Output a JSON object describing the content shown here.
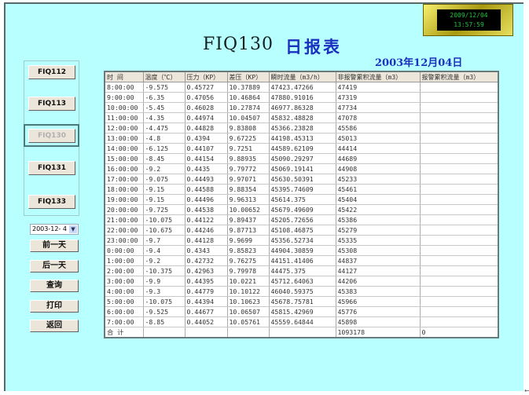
{
  "clock": {
    "date": "2009/12/04",
    "time": "13:57:59"
  },
  "header": {
    "title": "FIQ130",
    "subtitle": "日报表",
    "report_date": "2003年12月04日"
  },
  "nav": {
    "meters": [
      {
        "label": "FIQ112",
        "disabled": false
      },
      {
        "label": "FIQ113",
        "disabled": false
      },
      {
        "label": "FIQ130",
        "disabled": true
      },
      {
        "label": "FIQ131",
        "disabled": false
      },
      {
        "label": "FIQ133",
        "disabled": false
      }
    ],
    "date_select": "2003-12- 4",
    "actions": [
      {
        "label": "前一天"
      },
      {
        "label": "后一天"
      },
      {
        "label": "查询"
      },
      {
        "label": "打印"
      },
      {
        "label": "返回"
      }
    ]
  },
  "table": {
    "columns": [
      "时 间",
      "温度（℃）",
      "压力（KP）",
      "差压（KP）",
      "瞬时流量（m3/h）",
      "非报警累积流量（m3）",
      "报警累积流量（m3）"
    ],
    "rows": [
      [
        "8:00:00",
        "-9.575",
        "0.45727",
        "10.37889",
        "47423.47266",
        "47419",
        ""
      ],
      [
        "9:00:00",
        "-6.35",
        "0.47056",
        "10.46864",
        "47880.91016",
        "47319",
        ""
      ],
      [
        "10:00:00",
        "-5.45",
        "0.46028",
        "10.27874",
        "46977.86328",
        "47734",
        ""
      ],
      [
        "11:00:00",
        "-4.35",
        "0.44974",
        "10.04507",
        "45832.48828",
        "47078",
        ""
      ],
      [
        "12:00:00",
        "-4.475",
        "0.44828",
        "9.83808",
        "45366.23828",
        "45586",
        ""
      ],
      [
        "13:00:00",
        "-4.8",
        "0.4394",
        "9.67225",
        "44198.45313",
        "45013",
        ""
      ],
      [
        "14:00:00",
        "-6.125",
        "0.44107",
        "9.7251",
        "44589.62109",
        "44414",
        ""
      ],
      [
        "15:00:00",
        "-8.45",
        "0.44154",
        "9.88935",
        "45090.29297",
        "44689",
        ""
      ],
      [
        "16:00:00",
        "-9.2",
        "0.4435",
        "9.79772",
        "45069.19141",
        "44908",
        ""
      ],
      [
        "17:00:00",
        "-9.075",
        "0.44493",
        "9.97071",
        "45630.50391",
        "45233",
        ""
      ],
      [
        "18:00:00",
        "-9.15",
        "0.44588",
        "9.88354",
        "45395.74609",
        "45461",
        ""
      ],
      [
        "19:00:00",
        "-9.15",
        "0.44496",
        "9.96313",
        "45614.375",
        "45404",
        ""
      ],
      [
        "20:00:00",
        "-9.725",
        "0.44538",
        "10.00652",
        "45679.49609",
        "45422",
        ""
      ],
      [
        "21:00:00",
        "-10.075",
        "0.44122",
        "9.89437",
        "45205.72656",
        "45386",
        ""
      ],
      [
        "22:00:00",
        "-10.675",
        "0.44246",
        "9.87713",
        "45108.46875",
        "45279",
        ""
      ],
      [
        "23:00:00",
        "-9.7",
        "0.44128",
        "9.9699",
        "45356.52734",
        "45335",
        ""
      ],
      [
        "0:00:00",
        "-9.4",
        "0.4343",
        "9.85823",
        "44904.30859",
        "45308",
        ""
      ],
      [
        "1:00:00",
        "-9.2",
        "0.42732",
        "9.76275",
        "44151.41406",
        "44837",
        ""
      ],
      [
        "2:00:00",
        "-10.375",
        "0.42963",
        "9.79978",
        "44475.375",
        "44127",
        ""
      ],
      [
        "3:00:00",
        "-9.9",
        "0.44395",
        "10.0221",
        "45712.64063",
        "44206",
        ""
      ],
      [
        "4:00:00",
        "-9.3",
        "0.44779",
        "10.10122",
        "46040.59375",
        "45383",
        ""
      ],
      [
        "5:00:00",
        "-10.075",
        "0.44394",
        "10.10623",
        "45678.75781",
        "45966",
        ""
      ],
      [
        "6:00:00",
        "-9.525",
        "0.44677",
        "10.06507",
        "45815.42969",
        "45776",
        ""
      ],
      [
        "7:00:00",
        "-8.85",
        "0.44052",
        "10.05761",
        "45559.64844",
        "45898",
        ""
      ],
      [
        "合 计",
        "",
        "",
        "",
        "",
        "1093178",
        "0"
      ]
    ]
  }
}
